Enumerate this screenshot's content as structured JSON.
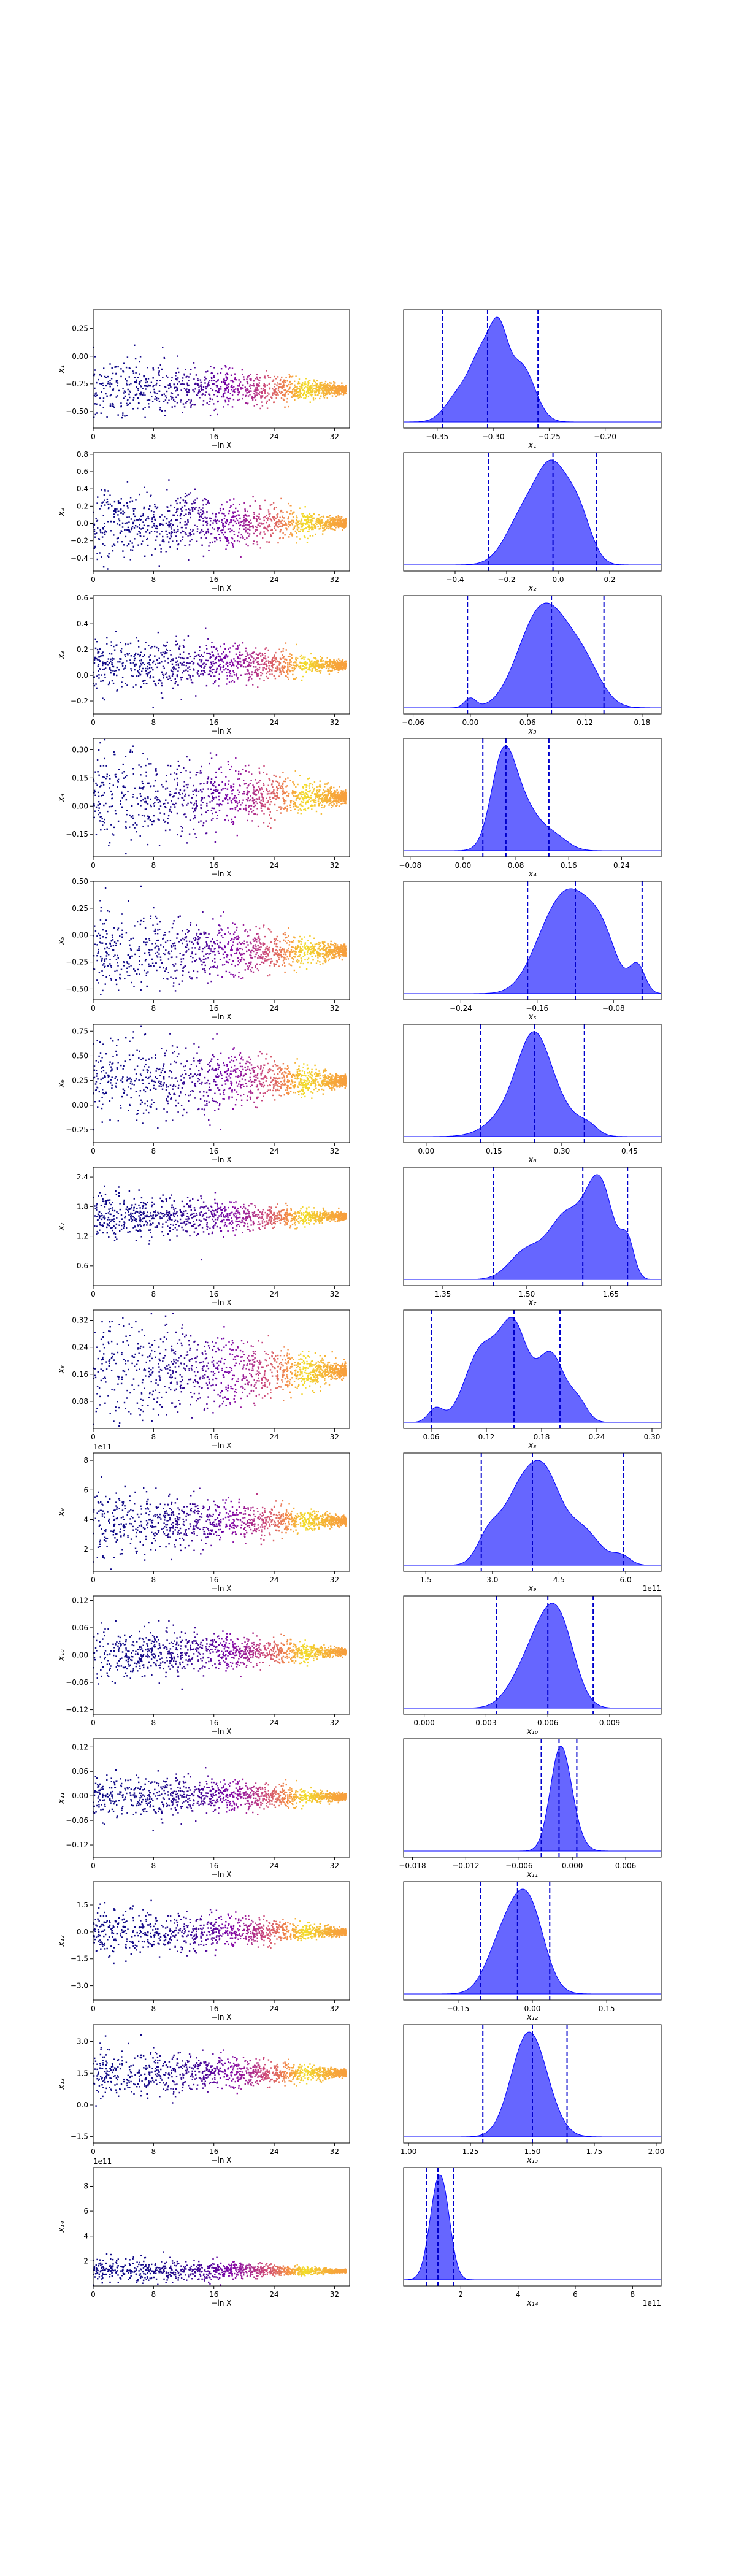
{
  "chart_data": {
    "type": "scatter",
    "description_layout": "14 rows; left: trace scatter of parameter vs -ln X coloured by plasma colormap; right: marginal KDE with dashed quantile lines",
    "colors": {
      "scatter_low": "#0d0887",
      "scatter_mid": "#cc4778",
      "scatter_high": "#f0f921",
      "kde_fill": "#5555ff",
      "kde_edge": "#0000ff",
      "quantile_line": "#0000cc"
    },
    "trace_xlabel": "−ln X",
    "trace_xticks": [
      0,
      8,
      16,
      24,
      32
    ],
    "trace_xlim": [
      0,
      34
    ],
    "rows": [
      {
        "ylabel": "x₁",
        "exp_label": "",
        "center": -0.3,
        "spread": 0.14,
        "yticks": [
          0.25,
          0.0,
          -0.25,
          -0.5
        ],
        "yticklabels": [
          "0.25",
          "0.00",
          "−0.25",
          "−0.50"
        ],
        "ylim": [
          -0.65,
          0.42
        ],
        "kde_label": "x₁",
        "kde_exp": "",
        "kde_xlim": [
          -0.38,
          -0.15
        ],
        "kde_xticks": [
          -0.35,
          -0.3,
          -0.25,
          -0.2
        ],
        "kde_xticklabels": [
          "−0.35",
          "−0.30",
          "−0.25",
          "−0.20"
        ],
        "quantiles": [
          -0.345,
          -0.305,
          -0.26
        ],
        "kde_peaks": [
          [
            -0.31,
            0.85,
            0.01
          ],
          [
            -0.295,
            1.0,
            0.008
          ],
          [
            -0.275,
            0.8,
            0.012
          ],
          [
            -0.33,
            0.4,
            0.012
          ]
        ]
      },
      {
        "ylabel": "x₂",
        "exp_label": "",
        "center": 0.0,
        "spread": 0.22,
        "yticks": [
          0.8,
          0.6,
          0.4,
          0.2,
          0.0,
          -0.2,
          -0.4
        ],
        "yticklabels": [
          "0.8",
          "0.6",
          "0.4",
          "0.2",
          "0.0",
          "−0.2",
          "−0.4"
        ],
        "ylim": [
          -0.55,
          0.82
        ],
        "kde_label": "x₂",
        "kde_exp": "",
        "kde_xlim": [
          -0.6,
          0.4
        ],
        "kde_xticks": [
          -0.4,
          -0.2,
          0.0,
          0.2
        ],
        "kde_xticklabels": [
          "−0.4",
          "−0.2",
          "0.0",
          "0.2"
        ],
        "quantiles": [
          -0.27,
          -0.02,
          0.15
        ],
        "kde_peaks": [
          [
            -0.02,
            1.0,
            0.06
          ],
          [
            -0.13,
            0.6,
            0.07
          ],
          [
            0.08,
            0.55,
            0.05
          ]
        ]
      },
      {
        "ylabel": "x₃",
        "exp_label": "",
        "center": 0.08,
        "spread": 0.12,
        "yticks": [
          0.6,
          0.4,
          0.2,
          0.0,
          -0.2
        ],
        "yticklabels": [
          "0.6",
          "0.4",
          "0.2",
          "0.0",
          "−0.2"
        ],
        "ylim": [
          -0.3,
          0.62
        ],
        "kde_label": "x₃",
        "kde_exp": "",
        "kde_xlim": [
          -0.07,
          0.2
        ],
        "kde_xticks": [
          -0.06,
          0.0,
          0.06,
          0.12,
          0.18
        ],
        "kde_xticklabels": [
          "−0.06",
          "0.00",
          "0.06",
          "0.12",
          "0.18"
        ],
        "quantiles": [
          -0.003,
          0.085,
          0.14
        ],
        "kde_peaks": [
          [
            0.085,
            1.0,
            0.022
          ],
          [
            0.06,
            0.5,
            0.02
          ],
          [
            0.12,
            0.45,
            0.018
          ],
          [
            0.0,
            0.12,
            0.006
          ]
        ]
      },
      {
        "ylabel": "x₄",
        "exp_label": "",
        "center": 0.05,
        "spread": 0.13,
        "yticks": [
          0.3,
          0.15,
          0.0,
          -0.15
        ],
        "yticklabels": [
          "0.30",
          "0.15",
          "0.00",
          "−0.15"
        ],
        "ylim": [
          -0.27,
          0.36
        ],
        "kde_label": "x₄",
        "kde_exp": "",
        "kde_xlim": [
          -0.09,
          0.3
        ],
        "kde_xticks": [
          -0.08,
          0.0,
          0.08,
          0.16,
          0.24
        ],
        "kde_xticklabels": [
          "−0.08",
          "0.00",
          "0.08",
          "0.16",
          "0.24"
        ],
        "quantiles": [
          0.03,
          0.065,
          0.13
        ],
        "kde_peaks": [
          [
            0.06,
            1.0,
            0.018
          ],
          [
            0.09,
            0.55,
            0.025
          ],
          [
            0.14,
            0.15,
            0.02
          ]
        ]
      },
      {
        "ylabel": "x₅",
        "exp_label": "",
        "center": -0.15,
        "spread": 0.2,
        "yticks": [
          0.5,
          0.25,
          0.0,
          -0.25,
          -0.5
        ],
        "yticklabels": [
          "0.50",
          "0.25",
          "0.00",
          "−0.25",
          "−0.50"
        ],
        "ylim": [
          -0.6,
          0.5
        ],
        "kde_label": "x₅",
        "kde_exp": "",
        "kde_xlim": [
          -0.3,
          -0.03
        ],
        "kde_xticks": [
          -0.24,
          -0.16,
          -0.08
        ],
        "kde_xticklabels": [
          "−0.24",
          "−0.16",
          "−0.08"
        ],
        "quantiles": [
          -0.17,
          -0.12,
          -0.05
        ],
        "kde_peaks": [
          [
            -0.12,
            1.0,
            0.022
          ],
          [
            -0.15,
            0.5,
            0.02
          ],
          [
            -0.055,
            0.32,
            0.008
          ],
          [
            -0.09,
            0.45,
            0.015
          ]
        ]
      },
      {
        "ylabel": "x₆",
        "exp_label": "",
        "center": 0.25,
        "spread": 0.22,
        "yticks": [
          0.75,
          0.5,
          0.25,
          0.0,
          -0.25
        ],
        "yticklabels": [
          "0.75",
          "0.50",
          "0.25",
          "0.00",
          "−0.25"
        ],
        "ylim": [
          -0.38,
          0.82
        ],
        "kde_label": "x₆",
        "kde_exp": "",
        "kde_xlim": [
          -0.05,
          0.52
        ],
        "kde_xticks": [
          0.0,
          0.15,
          0.3,
          0.45
        ],
        "kde_xticklabels": [
          "0.00",
          "0.15",
          "0.30",
          "0.45"
        ],
        "quantiles": [
          0.12,
          0.24,
          0.35
        ],
        "kde_peaks": [
          [
            0.24,
            1.0,
            0.035
          ],
          [
            0.2,
            0.4,
            0.05
          ],
          [
            0.3,
            0.3,
            0.04
          ],
          [
            0.36,
            0.1,
            0.02
          ]
        ]
      },
      {
        "ylabel": "x₇",
        "exp_label": "",
        "center": 1.6,
        "spread": 0.25,
        "yticks": [
          2.4,
          1.8,
          1.2,
          0.6
        ],
        "yticklabels": [
          "2.4",
          "1.8",
          "1.2",
          "0.6"
        ],
        "ylim": [
          0.2,
          2.6
        ],
        "kde_label": "x₇",
        "kde_exp": "",
        "kde_xlim": [
          1.28,
          1.74
        ],
        "kde_xticks": [
          1.35,
          1.5,
          1.65
        ],
        "kde_xticklabels": [
          "1.35",
          "1.50",
          "1.65"
        ],
        "quantiles": [
          1.44,
          1.6,
          1.68
        ],
        "kde_peaks": [
          [
            1.63,
            1.0,
            0.025
          ],
          [
            1.57,
            0.65,
            0.03
          ],
          [
            1.5,
            0.3,
            0.03
          ],
          [
            1.68,
            0.35,
            0.012
          ]
        ]
      },
      {
        "ylabel": "x₈",
        "exp_label": "",
        "center": 0.17,
        "spread": 0.08,
        "yticks": [
          0.32,
          0.24,
          0.16,
          0.08
        ],
        "yticklabels": [
          "0.32",
          "0.24",
          "0.16",
          "0.08"
        ],
        "ylim": [
          0.0,
          0.35
        ],
        "kde_label": "x₈",
        "kde_exp": "",
        "kde_xlim": [
          0.03,
          0.31
        ],
        "kde_xticks": [
          0.06,
          0.12,
          0.18,
          0.24,
          0.3
        ],
        "kde_xticklabels": [
          "0.06",
          "0.12",
          "0.18",
          "0.24",
          "0.30"
        ],
        "quantiles": [
          0.06,
          0.15,
          0.2
        ],
        "kde_peaks": [
          [
            0.15,
            1.0,
            0.015
          ],
          [
            0.115,
            0.8,
            0.018
          ],
          [
            0.19,
            0.75,
            0.015
          ],
          [
            0.065,
            0.15,
            0.008
          ],
          [
            0.22,
            0.2,
            0.01
          ]
        ]
      },
      {
        "ylabel": "x₉",
        "exp_label": "1e11",
        "center": 3.9,
        "spread": 1.1,
        "yticks": [
          8,
          6,
          4,
          2
        ],
        "yticklabels": [
          "8",
          "6",
          "4",
          "2"
        ],
        "ylim": [
          0.5,
          8.5
        ],
        "kde_label": "x₉",
        "kde_exp": "1e11",
        "kde_xlim": [
          1.0,
          6.8
        ],
        "kde_xticks": [
          1.5,
          3.0,
          4.5,
          6.0
        ],
        "kde_xticklabels": [
          "1.5",
          "3.0",
          "4.5",
          "6.0"
        ],
        "quantiles": [
          2.75,
          3.9,
          5.95
        ],
        "kde_peaks": [
          [
            3.6,
            0.95,
            0.4
          ],
          [
            4.2,
            1.0,
            0.35
          ],
          [
            5.0,
            0.5,
            0.4
          ],
          [
            2.9,
            0.35,
            0.25
          ],
          [
            5.9,
            0.12,
            0.2
          ]
        ]
      },
      {
        "ylabel": "x₁₀",
        "exp_label": "",
        "center": 0.006,
        "spread": 0.03,
        "yticks": [
          0.12,
          0.06,
          0.0,
          -0.06,
          -0.12
        ],
        "yticklabels": [
          "0.12",
          "0.06",
          "0.00",
          "−0.06",
          "−0.12"
        ],
        "ylim": [
          -0.13,
          0.13
        ],
        "kde_label": "x₁₀",
        "kde_exp": "",
        "kde_xlim": [
          -0.001,
          0.0115
        ],
        "kde_xticks": [
          0.0,
          0.003,
          0.006,
          0.009
        ],
        "kde_xticklabels": [
          "0.000",
          "0.003",
          "0.006",
          "0.009"
        ],
        "quantiles": [
          0.0035,
          0.006,
          0.0082
        ],
        "kde_peaks": [
          [
            0.006,
            1.0,
            0.0008
          ],
          [
            0.0068,
            0.6,
            0.0007
          ],
          [
            0.0048,
            0.4,
            0.0008
          ]
        ]
      },
      {
        "ylabel": "x₁₁",
        "exp_label": "",
        "center": -0.002,
        "spread": 0.03,
        "yticks": [
          0.12,
          0.06,
          0.0,
          -0.06,
          -0.12
        ],
        "yticklabels": [
          "0.12",
          "0.06",
          "0.00",
          "−0.06",
          "−0.12"
        ],
        "ylim": [
          -0.15,
          0.14
        ],
        "kde_label": "x₁₁",
        "kde_exp": "",
        "kde_xlim": [
          -0.019,
          0.01
        ],
        "kde_xticks": [
          -0.018,
          -0.012,
          -0.006,
          0.0,
          0.006
        ],
        "kde_xticklabels": [
          "−0.018",
          "−0.012",
          "−0.006",
          "0.000",
          "0.006"
        ],
        "quantiles": [
          -0.0035,
          -0.0015,
          0.0005
        ],
        "kde_peaks": [
          [
            -0.0015,
            1.0,
            0.0011
          ],
          [
            -0.0005,
            0.4,
            0.0012
          ]
        ]
      },
      {
        "ylabel": "x₁₂",
        "exp_label": "",
        "center": 0.0,
        "spread": 0.7,
        "yticks": [
          1.5,
          0.0,
          -1.5,
          -3.0
        ],
        "yticklabels": [
          "1.5",
          "0.0",
          "−1.5",
          "−3.0"
        ],
        "ylim": [
          -3.8,
          2.8
        ],
        "kde_label": "x₁₂",
        "kde_exp": "",
        "kde_xlim": [
          -0.26,
          0.26
        ],
        "kde_xticks": [
          -0.15,
          0.0,
          0.15
        ],
        "kde_xticklabels": [
          "−0.15",
          "0.00",
          "0.15"
        ],
        "quantiles": [
          -0.105,
          -0.03,
          0.035
        ],
        "kde_peaks": [
          [
            -0.025,
            1.0,
            0.035
          ],
          [
            0.0,
            0.6,
            0.03
          ],
          [
            -0.07,
            0.45,
            0.03
          ]
        ]
      },
      {
        "ylabel": "x₁₃",
        "exp_label": "",
        "center": 1.5,
        "spread": 0.6,
        "yticks": [
          3.0,
          1.5,
          0.0,
          -1.5
        ],
        "yticklabels": [
          "3.0",
          "1.5",
          "0.0",
          "−1.5"
        ],
        "ylim": [
          -1.8,
          3.8
        ],
        "kde_label": "x₁₃",
        "kde_exp": "",
        "kde_xlim": [
          0.98,
          2.02
        ],
        "kde_xticks": [
          1.0,
          1.25,
          1.5,
          1.75,
          2.0
        ],
        "kde_xticklabels": [
          "1.00",
          "1.25",
          "1.50",
          "1.75",
          "2.00"
        ],
        "quantiles": [
          1.3,
          1.5,
          1.64
        ],
        "kde_peaks": [
          [
            1.5,
            1.0,
            0.07
          ],
          [
            1.45,
            0.3,
            0.06
          ]
        ]
      },
      {
        "ylabel": "x₁₄",
        "exp_label": "1e11",
        "center": 1.2,
        "spread": 0.5,
        "yticks": [
          8,
          6,
          4,
          2
        ],
        "yticklabels": [
          "8",
          "6",
          "4",
          "2"
        ],
        "ylim": [
          0.0,
          9.5
        ],
        "kde_label": "x₁₄",
        "kde_exp": "1e11",
        "kde_xlim": [
          0.0,
          9.0
        ],
        "kde_xticks": [
          2,
          4,
          6,
          8
        ],
        "kde_xticklabels": [
          "2",
          "4",
          "6",
          "8"
        ],
        "quantiles": [
          0.8,
          1.2,
          1.75
        ],
        "kde_peaks": [
          [
            1.2,
            1.0,
            0.3
          ],
          [
            1.5,
            0.3,
            0.25
          ]
        ]
      }
    ]
  }
}
